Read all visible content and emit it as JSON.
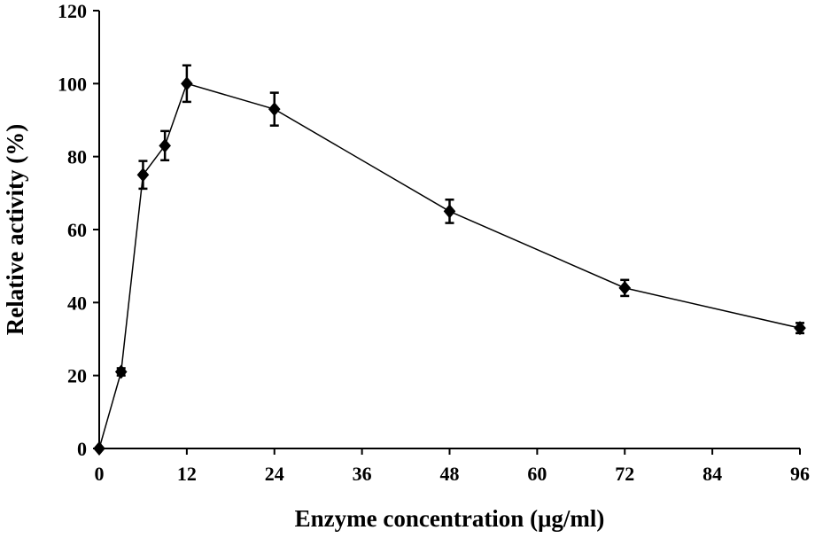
{
  "chart_data": {
    "type": "line",
    "title": "",
    "xlabel": "Enzyme concentration (μg/ml)",
    "ylabel": "Relative activity (%)",
    "xlim": [
      0,
      96
    ],
    "ylim": [
      0,
      120
    ],
    "xticks": [
      0,
      12,
      24,
      36,
      48,
      60,
      72,
      84,
      96
    ],
    "yticks": [
      0,
      20,
      40,
      60,
      80,
      100,
      120
    ],
    "grid": false,
    "legend": "none",
    "marker": "diamond",
    "series": [
      {
        "x": [
          0,
          3,
          6,
          9,
          12,
          24,
          48,
          72,
          96
        ],
        "y": [
          0,
          21,
          75,
          83,
          100,
          93,
          65,
          44,
          33
        ],
        "error": [
          0,
          1,
          3.8,
          4,
          5,
          4.5,
          3.2,
          2.2,
          1.4
        ],
        "color": "#000000"
      }
    ]
  }
}
